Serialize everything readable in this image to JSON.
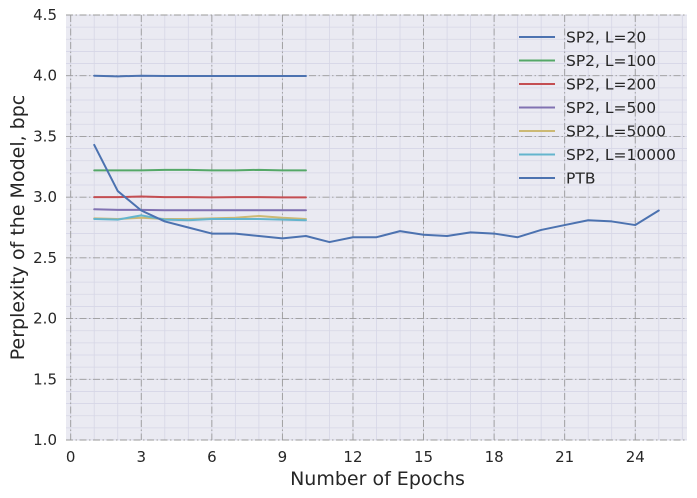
{
  "chart_data": {
    "type": "line",
    "title": "",
    "xlabel": "Number of Epochs",
    "ylabel": "Perplexity of the Model, bpc",
    "xlim": [
      -0.2,
      26.2
    ],
    "ylim": [
      1.0,
      4.5
    ],
    "xticks": [
      0,
      3,
      6,
      9,
      12,
      15,
      18,
      21,
      24
    ],
    "yticks": [
      1.0,
      1.5,
      2.0,
      2.5,
      3.0,
      3.5,
      4.0,
      4.5
    ],
    "x_minor_step": 1,
    "y_minor_step": 0.1,
    "grid": true,
    "legend_position": "upper-right",
    "background": "#eaeaf2",
    "series": [
      {
        "name": "SP2, L=20",
        "color": "#4c72b0",
        "x": [
          1,
          2,
          3,
          4,
          5,
          6,
          7,
          8,
          9,
          10
        ],
        "y": [
          4.0,
          3.995,
          4.0,
          3.998,
          3.998,
          3.998,
          3.998,
          3.998,
          3.998,
          3.998
        ]
      },
      {
        "name": "SP2, L=100",
        "color": "#55a868",
        "x": [
          1,
          2,
          3,
          4,
          5,
          6,
          7,
          8,
          9,
          10
        ],
        "y": [
          3.22,
          3.22,
          3.22,
          3.225,
          3.225,
          3.22,
          3.22,
          3.225,
          3.22,
          3.22
        ]
      },
      {
        "name": "SP2, L=200",
        "color": "#c44e52",
        "x": [
          1,
          2,
          3,
          4,
          5,
          6,
          7,
          8,
          9,
          10
        ],
        "y": [
          3.0,
          3.0,
          3.005,
          3.0,
          3.0,
          2.998,
          3.0,
          3.0,
          2.998,
          2.998
        ]
      },
      {
        "name": "SP2, L=500",
        "color": "#8172b2",
        "x": [
          1,
          2,
          3,
          4,
          5,
          6,
          7,
          8,
          9,
          10
        ],
        "y": [
          2.9,
          2.895,
          2.895,
          2.892,
          2.892,
          2.892,
          2.892,
          2.892,
          2.892,
          2.892
        ]
      },
      {
        "name": "SP2, L=5000",
        "color": "#ccb974",
        "x": [
          1,
          2,
          3,
          4,
          5,
          6,
          7,
          8,
          9,
          10
        ],
        "y": [
          2.825,
          2.82,
          2.83,
          2.82,
          2.82,
          2.825,
          2.83,
          2.845,
          2.83,
          2.82
        ]
      },
      {
        "name": "SP2, L=10000",
        "color": "#64b5cd",
        "x": [
          1,
          2,
          3,
          4,
          5,
          6,
          7,
          8,
          9,
          10
        ],
        "y": [
          2.82,
          2.815,
          2.85,
          2.815,
          2.81,
          2.82,
          2.82,
          2.82,
          2.815,
          2.81
        ]
      },
      {
        "name": "PTB",
        "color": "#4c72b0",
        "x": [
          1,
          2,
          3,
          4,
          5,
          6,
          7,
          8,
          9,
          10,
          11,
          12,
          13,
          14,
          15,
          16,
          17,
          18,
          19,
          20,
          21,
          22,
          23,
          24,
          25
        ],
        "y": [
          3.43,
          3.05,
          2.89,
          2.8,
          2.75,
          2.7,
          2.7,
          2.68,
          2.66,
          2.68,
          2.63,
          2.67,
          2.67,
          2.72,
          2.69,
          2.68,
          2.71,
          2.7,
          2.67,
          2.73,
          2.77,
          2.81,
          2.8,
          2.77,
          2.89
        ]
      }
    ]
  }
}
